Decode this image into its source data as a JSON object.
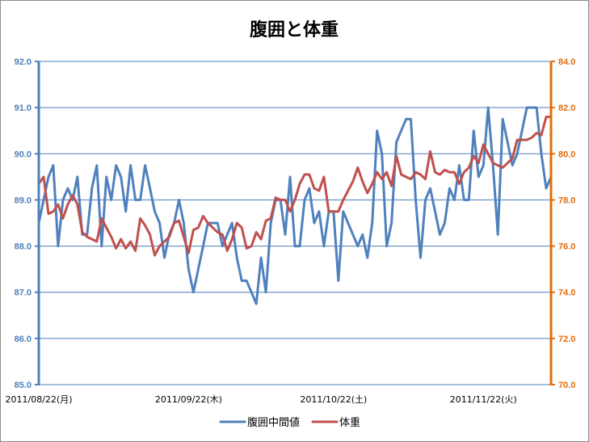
{
  "chart_data": {
    "type": "line",
    "title": "腹囲と体重",
    "xlabel": "",
    "ylabel": "",
    "y2label": "",
    "xlim": [
      "2011/08/22",
      "2011/12/06"
    ],
    "ylim": [
      85,
      92
    ],
    "y2lim": [
      70,
      84
    ],
    "yticks": [
      "85.0",
      "86.0",
      "87.0",
      "88.0",
      "89.0",
      "90.0",
      "91.0",
      "92.0"
    ],
    "y2ticks": [
      "70.0",
      "72.0",
      "74.0",
      "76.0",
      "78.0",
      "80.0",
      "82.0",
      "84.0"
    ],
    "x_ticks": [
      {
        "x": "2011/08/22",
        "label": "2011/08/22(月)"
      },
      {
        "x": "2011/09/22",
        "label": "2011/09/22(木)"
      },
      {
        "x": "2011/10/22",
        "label": "2011/10/22(土)"
      },
      {
        "x": "2011/11/22",
        "label": "2011/11/22(火)"
      }
    ],
    "grid": true,
    "grid_color": "#4A7EBB",
    "left_axis_color": "#4F81BD",
    "right_axis_color": "#E46C0A",
    "legend": "bottom",
    "x": [
      "2011/08/22",
      "2011/08/23",
      "2011/08/24",
      "2011/08/25",
      "2011/08/26",
      "2011/08/27",
      "2011/08/28",
      "2011/08/29",
      "2011/08/30",
      "2011/08/31",
      "2011/09/01",
      "2011/09/02",
      "2011/09/03",
      "2011/09/04",
      "2011/09/05",
      "2011/09/06",
      "2011/09/07",
      "2011/09/08",
      "2011/09/09",
      "2011/09/10",
      "2011/09/11",
      "2011/09/12",
      "2011/09/13",
      "2011/09/14",
      "2011/09/15",
      "2011/09/16",
      "2011/09/17",
      "2011/09/18",
      "2011/09/19",
      "2011/09/20",
      "2011/09/21",
      "2011/09/22",
      "2011/09/23",
      "2011/09/24",
      "2011/09/25",
      "2011/09/26",
      "2011/09/27",
      "2011/09/28",
      "2011/09/29",
      "2011/09/30",
      "2011/10/01",
      "2011/10/02",
      "2011/10/03",
      "2011/10/04",
      "2011/10/05",
      "2011/10/06",
      "2011/10/07",
      "2011/10/08",
      "2011/10/09",
      "2011/10/10",
      "2011/10/11",
      "2011/10/12",
      "2011/10/13",
      "2011/10/14",
      "2011/10/15",
      "2011/10/16",
      "2011/10/17",
      "2011/10/18",
      "2011/10/19",
      "2011/10/20",
      "2011/10/21",
      "2011/10/22",
      "2011/10/23",
      "2011/10/24",
      "2011/10/25",
      "2011/10/26",
      "2011/10/27",
      "2011/10/28",
      "2011/10/29",
      "2011/10/30",
      "2011/10/31",
      "2011/11/01",
      "2011/11/02",
      "2011/11/03",
      "2011/11/04",
      "2011/11/05",
      "2011/11/06",
      "2011/11/07",
      "2011/11/08",
      "2011/11/09",
      "2011/11/10",
      "2011/11/11",
      "2011/11/12",
      "2011/11/13",
      "2011/11/14",
      "2011/11/15",
      "2011/11/16",
      "2011/11/17",
      "2011/11/18",
      "2011/11/19",
      "2011/11/20",
      "2011/11/21",
      "2011/11/22",
      "2011/11/23",
      "2011/11/24",
      "2011/11/25",
      "2011/11/26",
      "2011/11/27",
      "2011/11/28",
      "2011/11/29",
      "2011/11/30",
      "2011/12/01",
      "2011/12/02",
      "2011/12/03",
      "2011/12/04",
      "2011/12/05",
      "2011/12/06"
    ],
    "series": [
      {
        "name": "腹囲中間値",
        "axis": "left",
        "color": "#4F81BD",
        "values": [
          88.5,
          89.0,
          89.5,
          89.75,
          88.0,
          89.0,
          89.25,
          89.0,
          89.5,
          88.25,
          88.25,
          89.25,
          89.75,
          88.0,
          89.5,
          89.0,
          89.75,
          89.5,
          88.75,
          89.75,
          89.0,
          89.0,
          89.75,
          89.25,
          88.75,
          88.5,
          87.75,
          88.25,
          88.5,
          89.0,
          88.5,
          87.5,
          87.0,
          87.5,
          88.0,
          88.5,
          88.5,
          88.5,
          88.0,
          88.25,
          88.5,
          87.75,
          87.25,
          87.25,
          87.0,
          86.75,
          87.75,
          87.0,
          88.5,
          89.0,
          89.0,
          88.25,
          89.5,
          88.0,
          88.0,
          89.0,
          89.25,
          88.5,
          88.75,
          88.0,
          88.75,
          88.75,
          87.25,
          88.75,
          88.5,
          88.25,
          88.0,
          88.25,
          87.75,
          88.5,
          90.5,
          90.0,
          88.0,
          88.5,
          90.25,
          90.5,
          90.75,
          90.75,
          89.0,
          87.75,
          89.0,
          89.25,
          88.75,
          88.25,
          88.5,
          89.25,
          89.0,
          89.75,
          89.0,
          89.0,
          90.5,
          89.5,
          89.75,
          91.0,
          89.75,
          88.25,
          90.75,
          90.25,
          89.75,
          90.0,
          90.5,
          91.0,
          91.0,
          91.0,
          90.0,
          89.25,
          89.5
        ]
      },
      {
        "name": "体重",
        "axis": "right",
        "color": "#C0504D",
        "values": [
          78.7,
          79.0,
          77.4,
          77.5,
          77.8,
          77.2,
          77.8,
          78.2,
          77.8,
          76.6,
          76.4,
          76.3,
          76.2,
          77.2,
          76.8,
          76.4,
          75.9,
          76.3,
          75.9,
          76.2,
          75.8,
          77.2,
          76.9,
          76.5,
          75.6,
          76.0,
          76.2,
          76.4,
          77.0,
          77.1,
          76.4,
          75.7,
          76.7,
          76.8,
          77.3,
          77.0,
          76.8,
          76.6,
          76.5,
          75.8,
          76.3,
          77.0,
          76.8,
          75.9,
          76.0,
          76.6,
          76.3,
          77.1,
          77.2,
          78.1,
          78.0,
          78.0,
          77.5,
          78.0,
          78.7,
          79.1,
          79.1,
          78.5,
          78.4,
          79.0,
          77.5,
          77.5,
          77.5,
          78.0,
          78.4,
          78.8,
          79.4,
          78.8,
          78.3,
          78.7,
          79.2,
          78.9,
          79.2,
          78.6,
          79.9,
          79.1,
          79.0,
          78.9,
          79.2,
          79.1,
          78.9,
          80.1,
          79.2,
          79.1,
          79.3,
          79.2,
          79.2,
          78.7,
          79.2,
          79.4,
          79.9,
          79.6,
          80.4,
          80.0,
          79.6,
          79.5,
          79.4,
          79.6,
          79.8,
          80.6,
          80.6,
          80.6,
          80.7,
          80.9,
          80.8,
          81.6,
          81.6
        ]
      }
    ]
  }
}
